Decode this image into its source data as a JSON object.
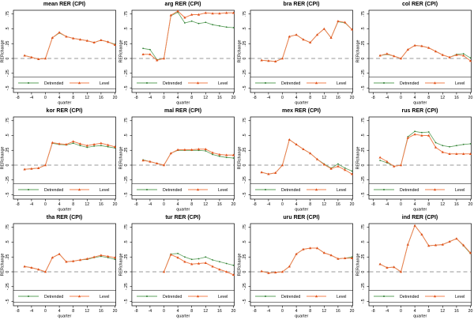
{
  "figure": {
    "xlabel": "quarter",
    "ylabel": "RERchange",
    "legend": {
      "detrended": "Detrended",
      "level": "Level"
    },
    "colors": {
      "detrended_line": "#5BA05B",
      "detrended_marker": "#2E7D32",
      "level_line": "#F0804F",
      "level_marker": "#E1521C",
      "zero_line": "#9A9A9A",
      "axis": "#000000",
      "background": "#FFFFFF"
    },
    "y_tick_labels": [
      ".75",
      ".5",
      ".25",
      "0",
      "-.25",
      "-.5"
    ],
    "y_tick_values": [
      0.75,
      0.5,
      0.25,
      0,
      -0.25,
      -0.5
    ],
    "x_ticks": [
      -8,
      -4,
      0,
      4,
      8,
      12,
      16,
      20
    ],
    "grid": false,
    "legend_position": "bottom-inside-box"
  },
  "chart_data": [
    {
      "type": "line",
      "title": "mean RER (CPI)",
      "xlabel": "quarter",
      "ylabel": "RERchange",
      "ylim": [
        -0.5,
        0.8
      ],
      "x": [
        -6,
        -4,
        -2,
        0,
        2,
        4,
        6,
        8,
        10,
        12,
        14,
        16,
        18,
        20
      ],
      "series": [
        {
          "name": "Detrended",
          "values": [
            0.05,
            0.02,
            -0.01,
            0,
            0.35,
            0.43,
            0.37,
            0.34,
            0.32,
            0.3,
            0.27,
            0.31,
            0.28,
            0.24
          ]
        },
        {
          "name": "Level",
          "values": [
            0.05,
            0.02,
            -0.01,
            0,
            0.35,
            0.44,
            0.37,
            0.34,
            0.32,
            0.3,
            0.27,
            0.31,
            0.28,
            0.23
          ]
        }
      ]
    },
    {
      "type": "line",
      "title": "arg RER (CPI)",
      "xlabel": "quarter",
      "ylabel": "RERchange",
      "ylim": [
        -0.5,
        0.8
      ],
      "x": [
        -6,
        -4,
        -2,
        0,
        2,
        4,
        6,
        8,
        10,
        12,
        14,
        16,
        18,
        20
      ],
      "series": [
        {
          "name": "Detrended",
          "values": [
            0.17,
            0.15,
            -0.02,
            0,
            0.72,
            0.78,
            0.6,
            0.63,
            0.59,
            0.61,
            0.57,
            0.55,
            0.53,
            0.52
          ]
        },
        {
          "name": "Level",
          "values": [
            0.07,
            0.07,
            -0.03,
            0,
            0.73,
            0.8,
            0.69,
            0.74,
            0.74,
            0.77,
            0.76,
            0.76,
            0.77,
            0.77
          ]
        }
      ]
    },
    {
      "type": "line",
      "title": "bra RER (CPI)",
      "xlabel": "quarter",
      "ylabel": "RERchange",
      "ylim": [
        -0.5,
        0.8
      ],
      "x": [
        -6,
        -4,
        -2,
        0,
        2,
        4,
        6,
        8,
        10,
        12,
        14,
        16,
        18,
        20
      ],
      "series": [
        {
          "name": "Detrended",
          "values": [
            -0.03,
            -0.04,
            -0.05,
            0,
            0.37,
            0.4,
            0.32,
            0.27,
            0.4,
            0.5,
            0.35,
            0.62,
            0.6,
            0.49
          ]
        },
        {
          "name": "Level",
          "values": [
            -0.03,
            -0.04,
            -0.05,
            0,
            0.37,
            0.4,
            0.32,
            0.27,
            0.4,
            0.5,
            0.35,
            0.63,
            0.61,
            0.49
          ]
        }
      ]
    },
    {
      "type": "line",
      "title": "col RER (CPI)",
      "xlabel": "quarter",
      "ylabel": "RERchange",
      "ylim": [
        -0.5,
        0.8
      ],
      "x": [
        -6,
        -4,
        -2,
        0,
        2,
        4,
        6,
        8,
        10,
        12,
        14,
        16,
        18,
        20
      ],
      "series": [
        {
          "name": "Detrended",
          "values": [
            0.05,
            0.07,
            0.04,
            0,
            0.15,
            0.22,
            0.21,
            0.18,
            0.12,
            0.06,
            0.02,
            0.07,
            0.08,
            0.01
          ]
        },
        {
          "name": "Level",
          "values": [
            0.05,
            0.08,
            0.04,
            0,
            0.15,
            0.22,
            0.21,
            0.18,
            0.12,
            0.06,
            0.02,
            0.06,
            0.05,
            -0.04
          ]
        }
      ]
    },
    {
      "type": "line",
      "title": "kor RER (CPI)",
      "xlabel": "quarter",
      "ylabel": "RERchange",
      "ylim": [
        -0.5,
        0.8
      ],
      "x": [
        -6,
        -4,
        -2,
        0,
        2,
        4,
        6,
        8,
        10,
        12,
        14,
        16,
        18,
        20
      ],
      "series": [
        {
          "name": "Detrended",
          "values": [
            -0.07,
            -0.06,
            -0.05,
            0,
            0.37,
            0.35,
            0.34,
            0.37,
            0.33,
            0.3,
            0.32,
            0.33,
            0.31,
            0.29
          ]
        },
        {
          "name": "Level",
          "values": [
            -0.07,
            -0.06,
            -0.05,
            0,
            0.38,
            0.36,
            0.35,
            0.4,
            0.36,
            0.33,
            0.35,
            0.37,
            0.34,
            0.31
          ]
        }
      ]
    },
    {
      "type": "line",
      "title": "mal RER (CPI)",
      "xlabel": "quarter",
      "ylabel": "RERchange",
      "ylim": [
        -0.5,
        0.8
      ],
      "x": [
        -6,
        -4,
        -2,
        0,
        2,
        4,
        6,
        8,
        10,
        12,
        14,
        16,
        18,
        20
      ],
      "series": [
        {
          "name": "Detrended",
          "values": [
            0.09,
            0.06,
            0.03,
            0,
            0.2,
            0.25,
            0.25,
            0.25,
            0.25,
            0.24,
            0.18,
            0.15,
            0.13,
            0.12
          ]
        },
        {
          "name": "Level",
          "values": [
            0.08,
            0.06,
            0.03,
            0,
            0.2,
            0.26,
            0.26,
            0.26,
            0.27,
            0.27,
            0.21,
            0.18,
            0.17,
            0.17
          ]
        }
      ]
    },
    {
      "type": "line",
      "title": "mex RER (CPI)",
      "xlabel": "quarter",
      "ylabel": "RERchange",
      "ylim": [
        -0.5,
        0.8
      ],
      "x": [
        -6,
        -4,
        -2,
        0,
        2,
        4,
        6,
        8,
        10,
        12,
        14,
        16,
        18,
        20
      ],
      "series": [
        {
          "name": "Detrended",
          "values": [
            -0.12,
            -0.15,
            -0.13,
            0,
            0.43,
            0.35,
            0.27,
            0.2,
            0.1,
            0.02,
            -0.05,
            0.02,
            -0.05,
            -0.1
          ]
        },
        {
          "name": "Level",
          "values": [
            -0.12,
            -0.15,
            -0.13,
            0,
            0.43,
            0.35,
            0.27,
            0.2,
            0.1,
            0.01,
            -0.06,
            -0.02,
            -0.08,
            -0.15
          ]
        }
      ]
    },
    {
      "type": "line",
      "title": "rus RER (CPI)",
      "xlabel": "quarter",
      "ylabel": "RERchange",
      "ylim": [
        -0.5,
        0.8
      ],
      "x": [
        -6,
        -4,
        -2,
        0,
        2,
        4,
        6,
        8,
        10,
        12,
        14,
        16,
        18,
        20
      ],
      "series": [
        {
          "name": "Detrended",
          "values": [
            0.08,
            0.04,
            -0.02,
            0,
            0.48,
            0.57,
            0.55,
            0.56,
            0.38,
            0.33,
            0.31,
            0.33,
            0.35,
            0.36
          ]
        },
        {
          "name": "Level",
          "values": [
            0.13,
            0.06,
            -0.02,
            0,
            0.46,
            0.52,
            0.5,
            0.5,
            0.3,
            0.22,
            0.19,
            0.19,
            0.19,
            0.19
          ]
        }
      ]
    },
    {
      "type": "line",
      "title": "tha RER (CPI)",
      "xlabel": "quarter",
      "ylabel": "RERchange",
      "ylim": [
        -0.5,
        0.8
      ],
      "x": [
        -6,
        -4,
        -2,
        0,
        2,
        4,
        6,
        8,
        10,
        12,
        14,
        16,
        18,
        20
      ],
      "series": [
        {
          "name": "Detrended",
          "values": [
            0.09,
            0.07,
            0.04,
            0,
            0.24,
            0.3,
            0.17,
            0.18,
            0.2,
            0.21,
            0.24,
            0.26,
            0.24,
            0.21
          ]
        },
        {
          "name": "Level",
          "values": [
            0.09,
            0.07,
            0.04,
            0,
            0.24,
            0.3,
            0.17,
            0.18,
            0.2,
            0.22,
            0.25,
            0.28,
            0.26,
            0.24
          ]
        }
      ]
    },
    {
      "type": "line",
      "title": "tur RER (CPI)",
      "xlabel": "quarter",
      "ylabel": "RERchange",
      "ylim": [
        -0.5,
        0.8
      ],
      "x": [
        0,
        2,
        4,
        6,
        8,
        10,
        12,
        14,
        16,
        18,
        20
      ],
      "series": [
        {
          "name": "Detrended",
          "values": [
            0,
            0.3,
            0.31,
            0.25,
            0.21,
            0.22,
            0.25,
            0.2,
            0.17,
            0.14,
            0.11
          ]
        },
        {
          "name": "Level",
          "values": [
            0,
            0.29,
            0.24,
            0.17,
            0.13,
            0.14,
            0.15,
            0.09,
            0.04,
            0.0,
            -0.05
          ]
        }
      ]
    },
    {
      "type": "line",
      "title": "uru RER (CPI)",
      "xlabel": "quarter",
      "ylabel": "RERchange",
      "ylim": [
        -0.5,
        0.8
      ],
      "x": [
        -6,
        -4,
        -2,
        0,
        2,
        4,
        6,
        8,
        10,
        12,
        14,
        16,
        18,
        20
      ],
      "series": [
        {
          "name": "Detrended",
          "values": [
            0.01,
            -0.02,
            -0.01,
            0,
            0.09,
            0.3,
            0.38,
            0.4,
            0.4,
            0.32,
            0.28,
            0.22,
            0.23,
            0.25
          ]
        },
        {
          "name": "Level",
          "values": [
            0.01,
            -0.02,
            -0.01,
            0,
            0.09,
            0.3,
            0.38,
            0.4,
            0.4,
            0.32,
            0.28,
            0.22,
            0.23,
            0.23
          ]
        }
      ]
    },
    {
      "type": "line",
      "title": "ind RER (CPI)",
      "xlabel": "quarter",
      "ylabel": "RERchange",
      "ylim": [
        -0.5,
        0.8
      ],
      "x": [
        -6,
        -4,
        -2,
        0,
        2,
        4,
        6,
        8,
        10,
        12,
        14,
        16,
        18,
        20
      ],
      "series": [
        {
          "name": "Detrended",
          "values": [
            0.13,
            0.07,
            0.08,
            0,
            0.46,
            0.78,
            0.63,
            0.44,
            0.45,
            0.46,
            0.51,
            0.56,
            0.44,
            0.31
          ]
        },
        {
          "name": "Level",
          "values": [
            0.13,
            0.07,
            0.08,
            0,
            0.46,
            0.78,
            0.63,
            0.44,
            0.45,
            0.46,
            0.51,
            0.56,
            0.45,
            0.32
          ]
        }
      ]
    }
  ]
}
